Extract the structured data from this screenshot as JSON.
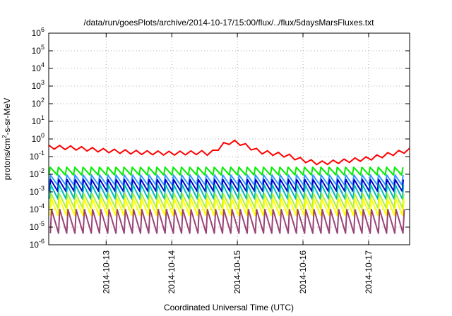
{
  "chart_data": {
    "type": "line",
    "title": "/data/run/goesPlots/archive/2014-10-17/15:00/flux/../flux/5daysMarsFluxes.txt",
    "xlabel": "Coordinated Universal Time (UTC)",
    "ylabel": {
      "base": "protons/cm",
      "sup": "2",
      "rest": "-s-sr-MeV"
    },
    "y_scale": "log",
    "ylim_exp": [
      -6,
      6
    ],
    "y_ticks": [
      {
        "base": "10",
        "exp": "-6",
        "value": -6
      },
      {
        "base": "10",
        "exp": "-5",
        "value": -5
      },
      {
        "base": "10",
        "exp": "-4",
        "value": -4
      },
      {
        "base": "10",
        "exp": "-3",
        "value": -3
      },
      {
        "base": "10",
        "exp": "-2",
        "value": -2
      },
      {
        "base": "10",
        "exp": "-1",
        "value": -1
      },
      {
        "base": "10",
        "exp": "0",
        "value": 0
      },
      {
        "base": "10",
        "exp": "1",
        "value": 1
      },
      {
        "base": "10",
        "exp": "2",
        "value": 2
      },
      {
        "base": "10",
        "exp": "3",
        "value": 3
      },
      {
        "base": "10",
        "exp": "4",
        "value": 4
      },
      {
        "base": "10",
        "exp": "5",
        "value": 5
      },
      {
        "base": "10",
        "exp": "6",
        "value": 6
      }
    ],
    "x_range": [
      "2014-10-12 03:00",
      "2014-10-17 15:00"
    ],
    "x_ticks": [
      "2014-10-13",
      "2014-10-14",
      "2014-10-15",
      "2014-10-16",
      "2014-10-17"
    ],
    "grid": true,
    "series": [
      {
        "color": "#ff0000",
        "kind": "wave",
        "top": [
          [
            "2014-10-12 03:00",
            0.45
          ],
          [
            "2014-10-12 12:00",
            0.4
          ],
          [
            "2014-10-13 00:00",
            0.28
          ],
          [
            "2014-10-13 12:00",
            0.22
          ],
          [
            "2014-10-14 00:00",
            0.2
          ],
          [
            "2014-10-14 12:00",
            0.22
          ],
          [
            "2014-10-14 14:00",
            0.18
          ],
          [
            "2014-10-14 20:00",
            0.8
          ],
          [
            "2014-10-15 00:00",
            0.85
          ],
          [
            "2014-10-15 08:00",
            0.25
          ],
          [
            "2014-10-15 18:00",
            0.15
          ],
          [
            "2014-10-16 00:00",
            0.08
          ],
          [
            "2014-10-16 06:00",
            0.055
          ],
          [
            "2014-10-16 12:00",
            0.065
          ],
          [
            "2014-10-17 00:00",
            0.1
          ],
          [
            "2014-10-17 15:00",
            0.3
          ]
        ],
        "depth": 0.6
      },
      {
        "color": "#00ee00",
        "kind": "saw",
        "peak": 0.025,
        "trough": 0.009
      },
      {
        "color": "#3399ff",
        "kind": "saw",
        "peak": 0.009,
        "trough": 0.0025
      },
      {
        "color": "#0000cc",
        "kind": "saw",
        "peak": 0.005,
        "trough": 0.0011
      },
      {
        "color": "#00bbbb",
        "kind": "saw",
        "peak": 0.0025,
        "trough": 0.0004
      },
      {
        "color": "#aaee44",
        "kind": "saw",
        "peak": 0.0008,
        "trough": 0.00012
      },
      {
        "color": "#ffff00",
        "kind": "saw",
        "peak": 0.0004,
        "trough": 4.5e-05
      },
      {
        "color": "#994477",
        "kind": "saw",
        "peak": 0.0001,
        "trough": 4.5e-06
      }
    ]
  }
}
